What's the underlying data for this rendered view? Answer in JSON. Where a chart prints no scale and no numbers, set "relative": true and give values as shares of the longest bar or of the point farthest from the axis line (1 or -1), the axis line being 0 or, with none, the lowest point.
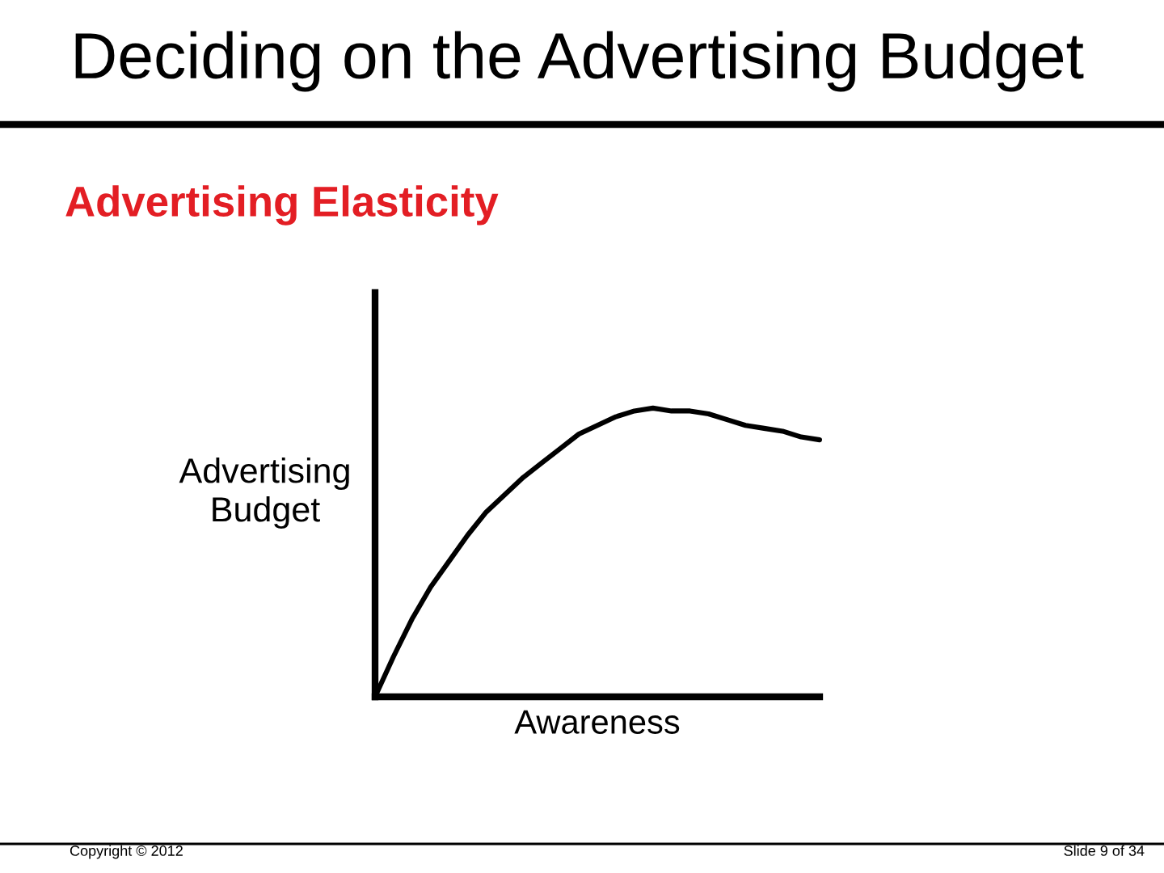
{
  "chart_data": {
    "type": "line",
    "title": "Deciding on the Advertising Budget",
    "subtitle": "Advertising Elasticity",
    "xlabel": "Awareness",
    "ylabel": "Advertising\nBudget",
    "categories": [
      null,
      null,
      null,
      null,
      null,
      null,
      null,
      null,
      null,
      null,
      null,
      null,
      null,
      null,
      null,
      null,
      null,
      null,
      null,
      null,
      null,
      null,
      null,
      null,
      null
    ],
    "series": [
      {
        "color": "#000000",
        "values": [
          0,
          0.14,
          0.27,
          0.38,
          0.47,
          0.56,
          0.64,
          0.7,
          0.76,
          0.81,
          0.86,
          0.91,
          0.94,
          0.97,
          0.99,
          1,
          0.99,
          0.99,
          0.98,
          0.96,
          0.94,
          0.93,
          0.92,
          0.9,
          0.89
        ]
      }
    ],
    "relative": true,
    "marker": "none",
    "line_style": "solid",
    "annotations": [
      "Copyright © 2012",
      "Slide 9 of 34"
    ]
  }
}
